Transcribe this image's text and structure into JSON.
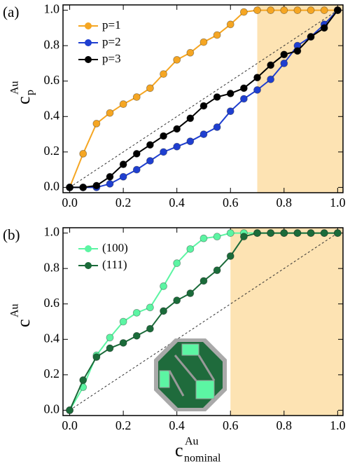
{
  "chart_data": [
    {
      "type": "line",
      "panel_label": "(a)",
      "ylabel": {
        "base": "c",
        "sub": "p",
        "sup": "Au"
      },
      "x": [
        0,
        0.05,
        0.1,
        0.15,
        0.2,
        0.25,
        0.3,
        0.35,
        0.4,
        0.45,
        0.5,
        0.55,
        0.6,
        0.65,
        0.7,
        0.75,
        0.8,
        0.85,
        0.9,
        0.95,
        1.0
      ],
      "series": [
        {
          "name": "p=1",
          "color": "#f5a623",
          "values": [
            0,
            0.19,
            0.36,
            0.42,
            0.47,
            0.51,
            0.56,
            0.64,
            0.72,
            0.76,
            0.82,
            0.86,
            0.92,
            0.99,
            1.0,
            1.0,
            1.0,
            1.0,
            1.0,
            1.0,
            1.0
          ]
        },
        {
          "name": "p=2",
          "color": "#1f3fd0",
          "values": [
            0,
            0,
            0,
            0.02,
            0.06,
            0.1,
            0.15,
            0.2,
            0.23,
            0.26,
            0.3,
            0.34,
            0.43,
            0.5,
            0.55,
            0.61,
            0.7,
            0.8,
            0.85,
            0.92,
            1.0
          ]
        },
        {
          "name": "p=3",
          "color": "#000000",
          "values": [
            0,
            0,
            0.01,
            0.06,
            0.13,
            0.19,
            0.24,
            0.29,
            0.33,
            0.39,
            0.46,
            0.51,
            0.53,
            0.56,
            0.62,
            0.69,
            0.75,
            0.77,
            0.85,
            0.9,
            1.0
          ]
        }
      ],
      "xlim": [
        -0.025,
        1.02
      ],
      "ylim": [
        -0.03,
        1.03
      ],
      "xticks": [
        {
          "value": 0,
          "label": "0.0"
        },
        {
          "value": 0.2,
          "label": "0.2"
        },
        {
          "value": 0.4,
          "label": "0.4"
        },
        {
          "value": 0.6,
          "label": "0.6"
        },
        {
          "value": 0.8,
          "label": "0.8"
        },
        {
          "value": 1,
          "label": "1.0"
        }
      ],
      "yticks": [
        {
          "value": 0,
          "label": "0.0"
        },
        {
          "value": 0.2,
          "label": "0.2"
        },
        {
          "value": 0.4,
          "label": "0.4"
        },
        {
          "value": 0.6,
          "label": "0.6"
        },
        {
          "value": 0.8,
          "label": "0.8"
        },
        {
          "value": 1,
          "label": "1.0"
        }
      ],
      "shade_from": 0.7,
      "shade_color": "#fde3b3",
      "diagonal": [
        0,
        1
      ],
      "legend": "upper left"
    },
    {
      "type": "line",
      "panel_label": "(b)",
      "ylabel": {
        "base": "c",
        "sup": "Au"
      },
      "xlabel": {
        "base": "c",
        "sub": "nominal",
        "sup": "Au"
      },
      "x": [
        0,
        0.05,
        0.1,
        0.15,
        0.2,
        0.25,
        0.3,
        0.35,
        0.4,
        0.45,
        0.5,
        0.55,
        0.6,
        0.65,
        0.7,
        0.75,
        0.8,
        0.85,
        0.9,
        0.95,
        1.0
      ],
      "series": [
        {
          "name": "(100)",
          "color": "#5cf5a3",
          "values": [
            0,
            0.13,
            0.31,
            0.41,
            0.5,
            0.55,
            0.58,
            0.7,
            0.83,
            0.91,
            0.97,
            0.98,
            1.0,
            1.0,
            1.0,
            1.0,
            1.0,
            1.0,
            1.0,
            1.0,
            1.0
          ]
        },
        {
          "name": "(111)",
          "color": "#1b6b3a",
          "values": [
            0,
            0.17,
            0.3,
            0.35,
            0.38,
            0.42,
            0.46,
            0.56,
            0.62,
            0.66,
            0.73,
            0.79,
            0.87,
            0.98,
            1.0,
            1.0,
            1.0,
            1.0,
            1.0,
            1.0,
            1.0
          ]
        }
      ],
      "xlim": [
        -0.025,
        1.02
      ],
      "ylim": [
        -0.03,
        1.03
      ],
      "xticks": [
        {
          "value": 0,
          "label": "0.0"
        },
        {
          "value": 0.2,
          "label": "0.2"
        },
        {
          "value": 0.4,
          "label": "0.4"
        },
        {
          "value": 0.6,
          "label": "0.6"
        },
        {
          "value": 0.8,
          "label": "0.8"
        },
        {
          "value": 1,
          "label": "1.0"
        }
      ],
      "yticks": [
        {
          "value": 0,
          "label": "0.0"
        },
        {
          "value": 0.2,
          "label": "0.2"
        },
        {
          "value": 0.4,
          "label": "0.4"
        },
        {
          "value": 0.6,
          "label": "0.6"
        },
        {
          "value": 0.8,
          "label": "0.8"
        },
        {
          "value": 1,
          "label": "1.0"
        }
      ],
      "shade_from": 0.6,
      "shade_color": "#fde3b3",
      "diagonal": [
        0,
        1
      ],
      "legend": "upper left"
    }
  ]
}
